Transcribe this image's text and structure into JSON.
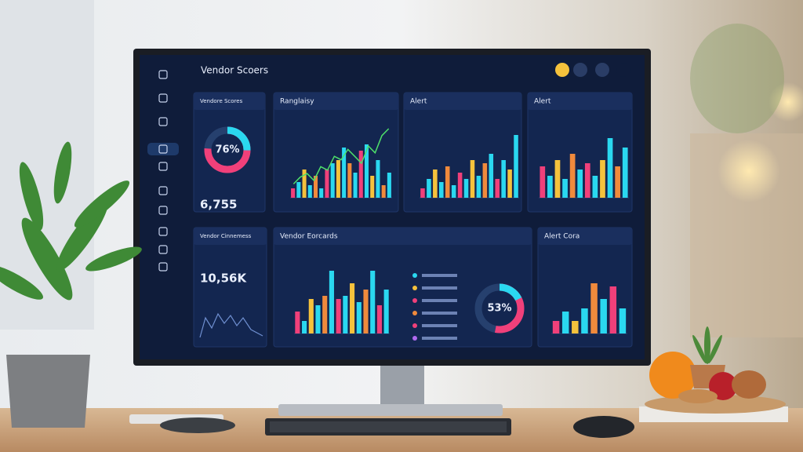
{
  "header": {
    "title": "Vendor Scoers"
  },
  "palette": [
    "#f0407a",
    "#2ad8f0",
    "#f5c23c",
    "#2ad8f0",
    "#f08a3c",
    "#2ad8f0"
  ],
  "panels": [
    {
      "title": "Vendore Scores",
      "donut_value": 76,
      "donut_label": "76%",
      "metric": "6,755"
    },
    {
      "title": "Ranglaisy",
      "bars": [
        15,
        25,
        45,
        20,
        35,
        15,
        45,
        55,
        60,
        80,
        55,
        40,
        75,
        85,
        35,
        60,
        20,
        40
      ],
      "line": [
        20,
        30,
        35,
        25,
        45,
        40,
        60,
        55,
        70,
        60,
        50,
        75,
        65,
        90,
        100
      ]
    },
    {
      "title": "Alert",
      "bars": [
        15,
        30,
        45,
        25,
        50,
        20,
        40,
        30,
        60,
        35,
        55,
        70,
        30,
        60,
        45,
        100
      ]
    },
    {
      "title": "Alert",
      "bars": [
        50,
        35,
        60,
        30,
        70,
        45,
        55,
        35,
        60,
        95,
        50,
        80
      ]
    },
    {
      "title": "Vendor Cinnemess",
      "metric": "10,56K"
    },
    {
      "title": "Vendor Eorcards",
      "bars": [
        35,
        20,
        55,
        45,
        60,
        100,
        55,
        60,
        80,
        50,
        70,
        100,
        45,
        70
      ],
      "donut_value": 53,
      "donut_label": "53%"
    },
    {
      "title": "Alert Cora",
      "bars": [
        20,
        35,
        20,
        40,
        80,
        55,
        75,
        40
      ]
    }
  ]
}
